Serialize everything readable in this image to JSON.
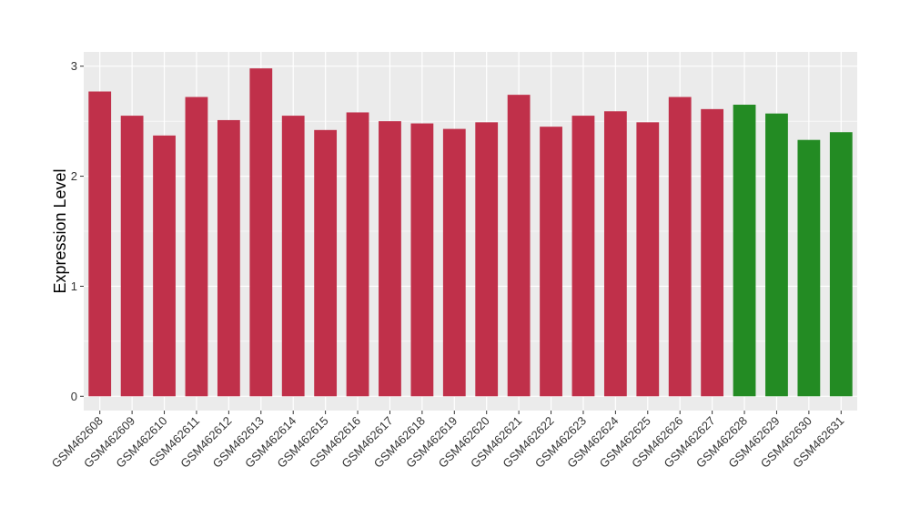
{
  "chart_data": {
    "type": "bar",
    "title": "",
    "xlabel": "",
    "ylabel": "Expression Level",
    "ylim": [
      -0.13,
      3.13
    ],
    "yticks": [
      0,
      1,
      2,
      3
    ],
    "grid": true,
    "legend": "none",
    "colors": {
      "group1": "#C0304A",
      "group2": "#238B23",
      "panel": "#EBEBEB",
      "grid": "#FFFFFF"
    },
    "categories": [
      "GSM462608",
      "GSM462609",
      "GSM462610",
      "GSM462611",
      "GSM462612",
      "GSM462613",
      "GSM462614",
      "GSM462615",
      "GSM462616",
      "GSM462617",
      "GSM462618",
      "GSM462619",
      "GSM462620",
      "GSM462621",
      "GSM462622",
      "GSM462623",
      "GSM462624",
      "GSM462625",
      "GSM462626",
      "GSM462627",
      "GSM462628",
      "GSM462629",
      "GSM462630",
      "GSM462631"
    ],
    "values": [
      2.77,
      2.55,
      2.37,
      2.72,
      2.51,
      2.98,
      2.55,
      2.42,
      2.58,
      2.5,
      2.48,
      2.43,
      2.49,
      2.74,
      2.45,
      2.55,
      2.59,
      2.49,
      2.72,
      2.61,
      2.65,
      2.57,
      2.33,
      2.4
    ],
    "bar_groups": [
      "group1",
      "group1",
      "group1",
      "group1",
      "group1",
      "group1",
      "group1",
      "group1",
      "group1",
      "group1",
      "group1",
      "group1",
      "group1",
      "group1",
      "group1",
      "group1",
      "group1",
      "group1",
      "group1",
      "group1",
      "group2",
      "group2",
      "group2",
      "group2"
    ]
  }
}
